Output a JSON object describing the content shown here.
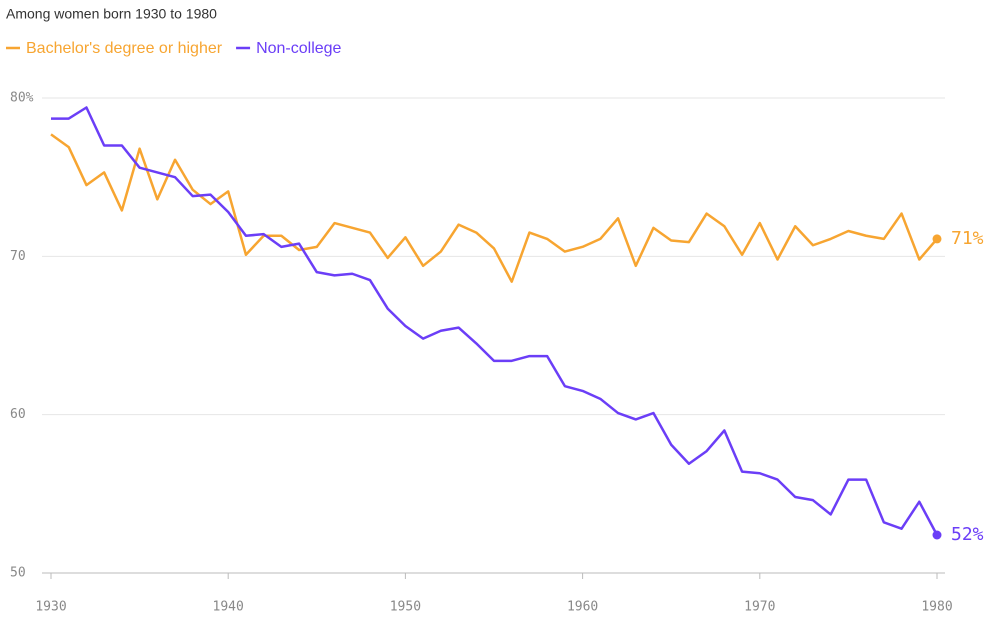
{
  "chart_data": {
    "type": "line",
    "subtitle": "Among women born 1930 to 1980",
    "x": [
      1930,
      1931,
      1932,
      1933,
      1934,
      1935,
      1936,
      1937,
      1938,
      1939,
      1940,
      1941,
      1942,
      1943,
      1944,
      1945,
      1946,
      1947,
      1948,
      1949,
      1950,
      1951,
      1952,
      1953,
      1954,
      1955,
      1956,
      1957,
      1958,
      1959,
      1960,
      1961,
      1962,
      1963,
      1964,
      1965,
      1966,
      1967,
      1968,
      1969,
      1970,
      1971,
      1972,
      1973,
      1974,
      1975,
      1976,
      1977,
      1978,
      1979,
      1980
    ],
    "series": [
      {
        "name": "Bachelor's degree or higher",
        "color": "#f7a531",
        "end_label": "71%",
        "values": [
          77.7,
          76.9,
          74.5,
          75.3,
          72.9,
          76.8,
          73.6,
          76.1,
          74.2,
          73.3,
          74.1,
          70.1,
          71.3,
          71.3,
          70.4,
          70.6,
          72.1,
          71.8,
          71.5,
          69.9,
          71.2,
          69.4,
          70.3,
          72.0,
          71.5,
          70.5,
          68.4,
          71.5,
          71.1,
          70.3,
          70.6,
          71.1,
          72.4,
          69.4,
          71.8,
          71.0,
          70.9,
          72.7,
          71.9,
          70.1,
          72.1,
          69.8,
          71.9,
          70.7,
          71.1,
          71.6,
          71.3,
          71.1,
          72.7,
          69.8,
          71.1
        ]
      },
      {
        "name": "Non-college",
        "color": "#6b3ef7",
        "end_label": "52%",
        "values": [
          78.7,
          78.7,
          79.4,
          77.0,
          77.0,
          75.6,
          75.3,
          75.0,
          73.8,
          73.9,
          72.8,
          71.3,
          71.4,
          70.6,
          70.8,
          69.0,
          68.8,
          68.9,
          68.5,
          66.7,
          65.6,
          64.8,
          65.3,
          65.5,
          64.5,
          63.4,
          63.4,
          63.7,
          63.7,
          61.8,
          61.5,
          61.0,
          60.1,
          59.7,
          60.1,
          58.1,
          56.9,
          57.7,
          59.0,
          56.4,
          56.3,
          55.9,
          54.8,
          54.6,
          53.7,
          55.9,
          55.9,
          53.2,
          52.8,
          54.5,
          52.4
        ]
      }
    ],
    "xlim": [
      1930,
      1980
    ],
    "xticks": [
      1930,
      1940,
      1950,
      1960,
      1970,
      1980
    ],
    "ylim": [
      50,
      80
    ],
    "yticks": [
      50,
      60,
      70,
      {
        "value": 80,
        "label": "80%"
      }
    ],
    "grid": true
  }
}
